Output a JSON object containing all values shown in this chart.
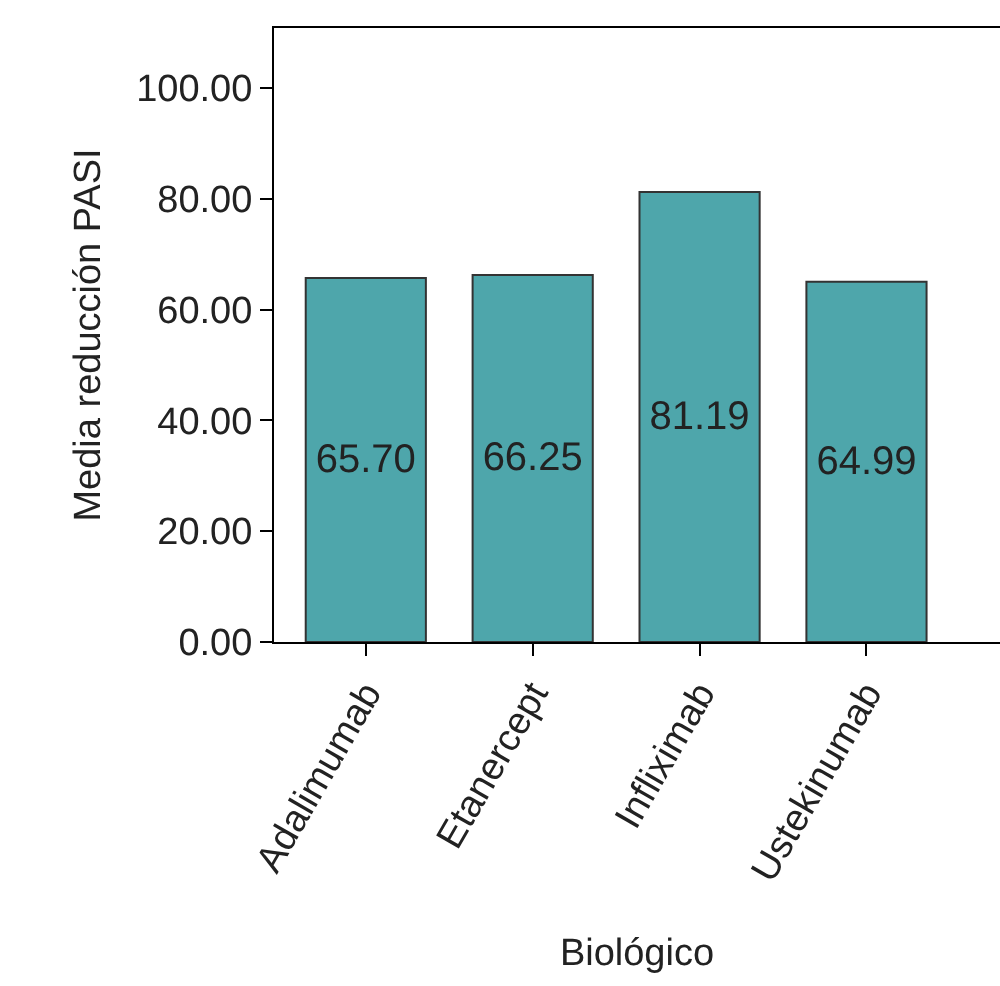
{
  "chart_data": {
    "type": "bar",
    "xlabel": "Biológico",
    "ylabel": "Media reducción PASI",
    "categories": [
      "Adalimumab",
      "Etanercept",
      "Infliximab",
      "Ustekinumab"
    ],
    "values": [
      65.7,
      66.25,
      81.19,
      64.99
    ],
    "color": "#4ea6ab",
    "ylim": [
      0,
      110.8
    ],
    "yticks": [
      {
        "value": 0,
        "label": "0.00"
      },
      {
        "value": 20,
        "label": "20.00"
      },
      {
        "value": 40,
        "label": "40.00"
      },
      {
        "value": 60,
        "label": "60.00"
      },
      {
        "value": 80,
        "label": "80.00"
      },
      {
        "value": 100,
        "label": "100.00"
      }
    ],
    "value_labels": [
      "65.70",
      "66.25",
      "81.19",
      "64.99"
    ]
  }
}
